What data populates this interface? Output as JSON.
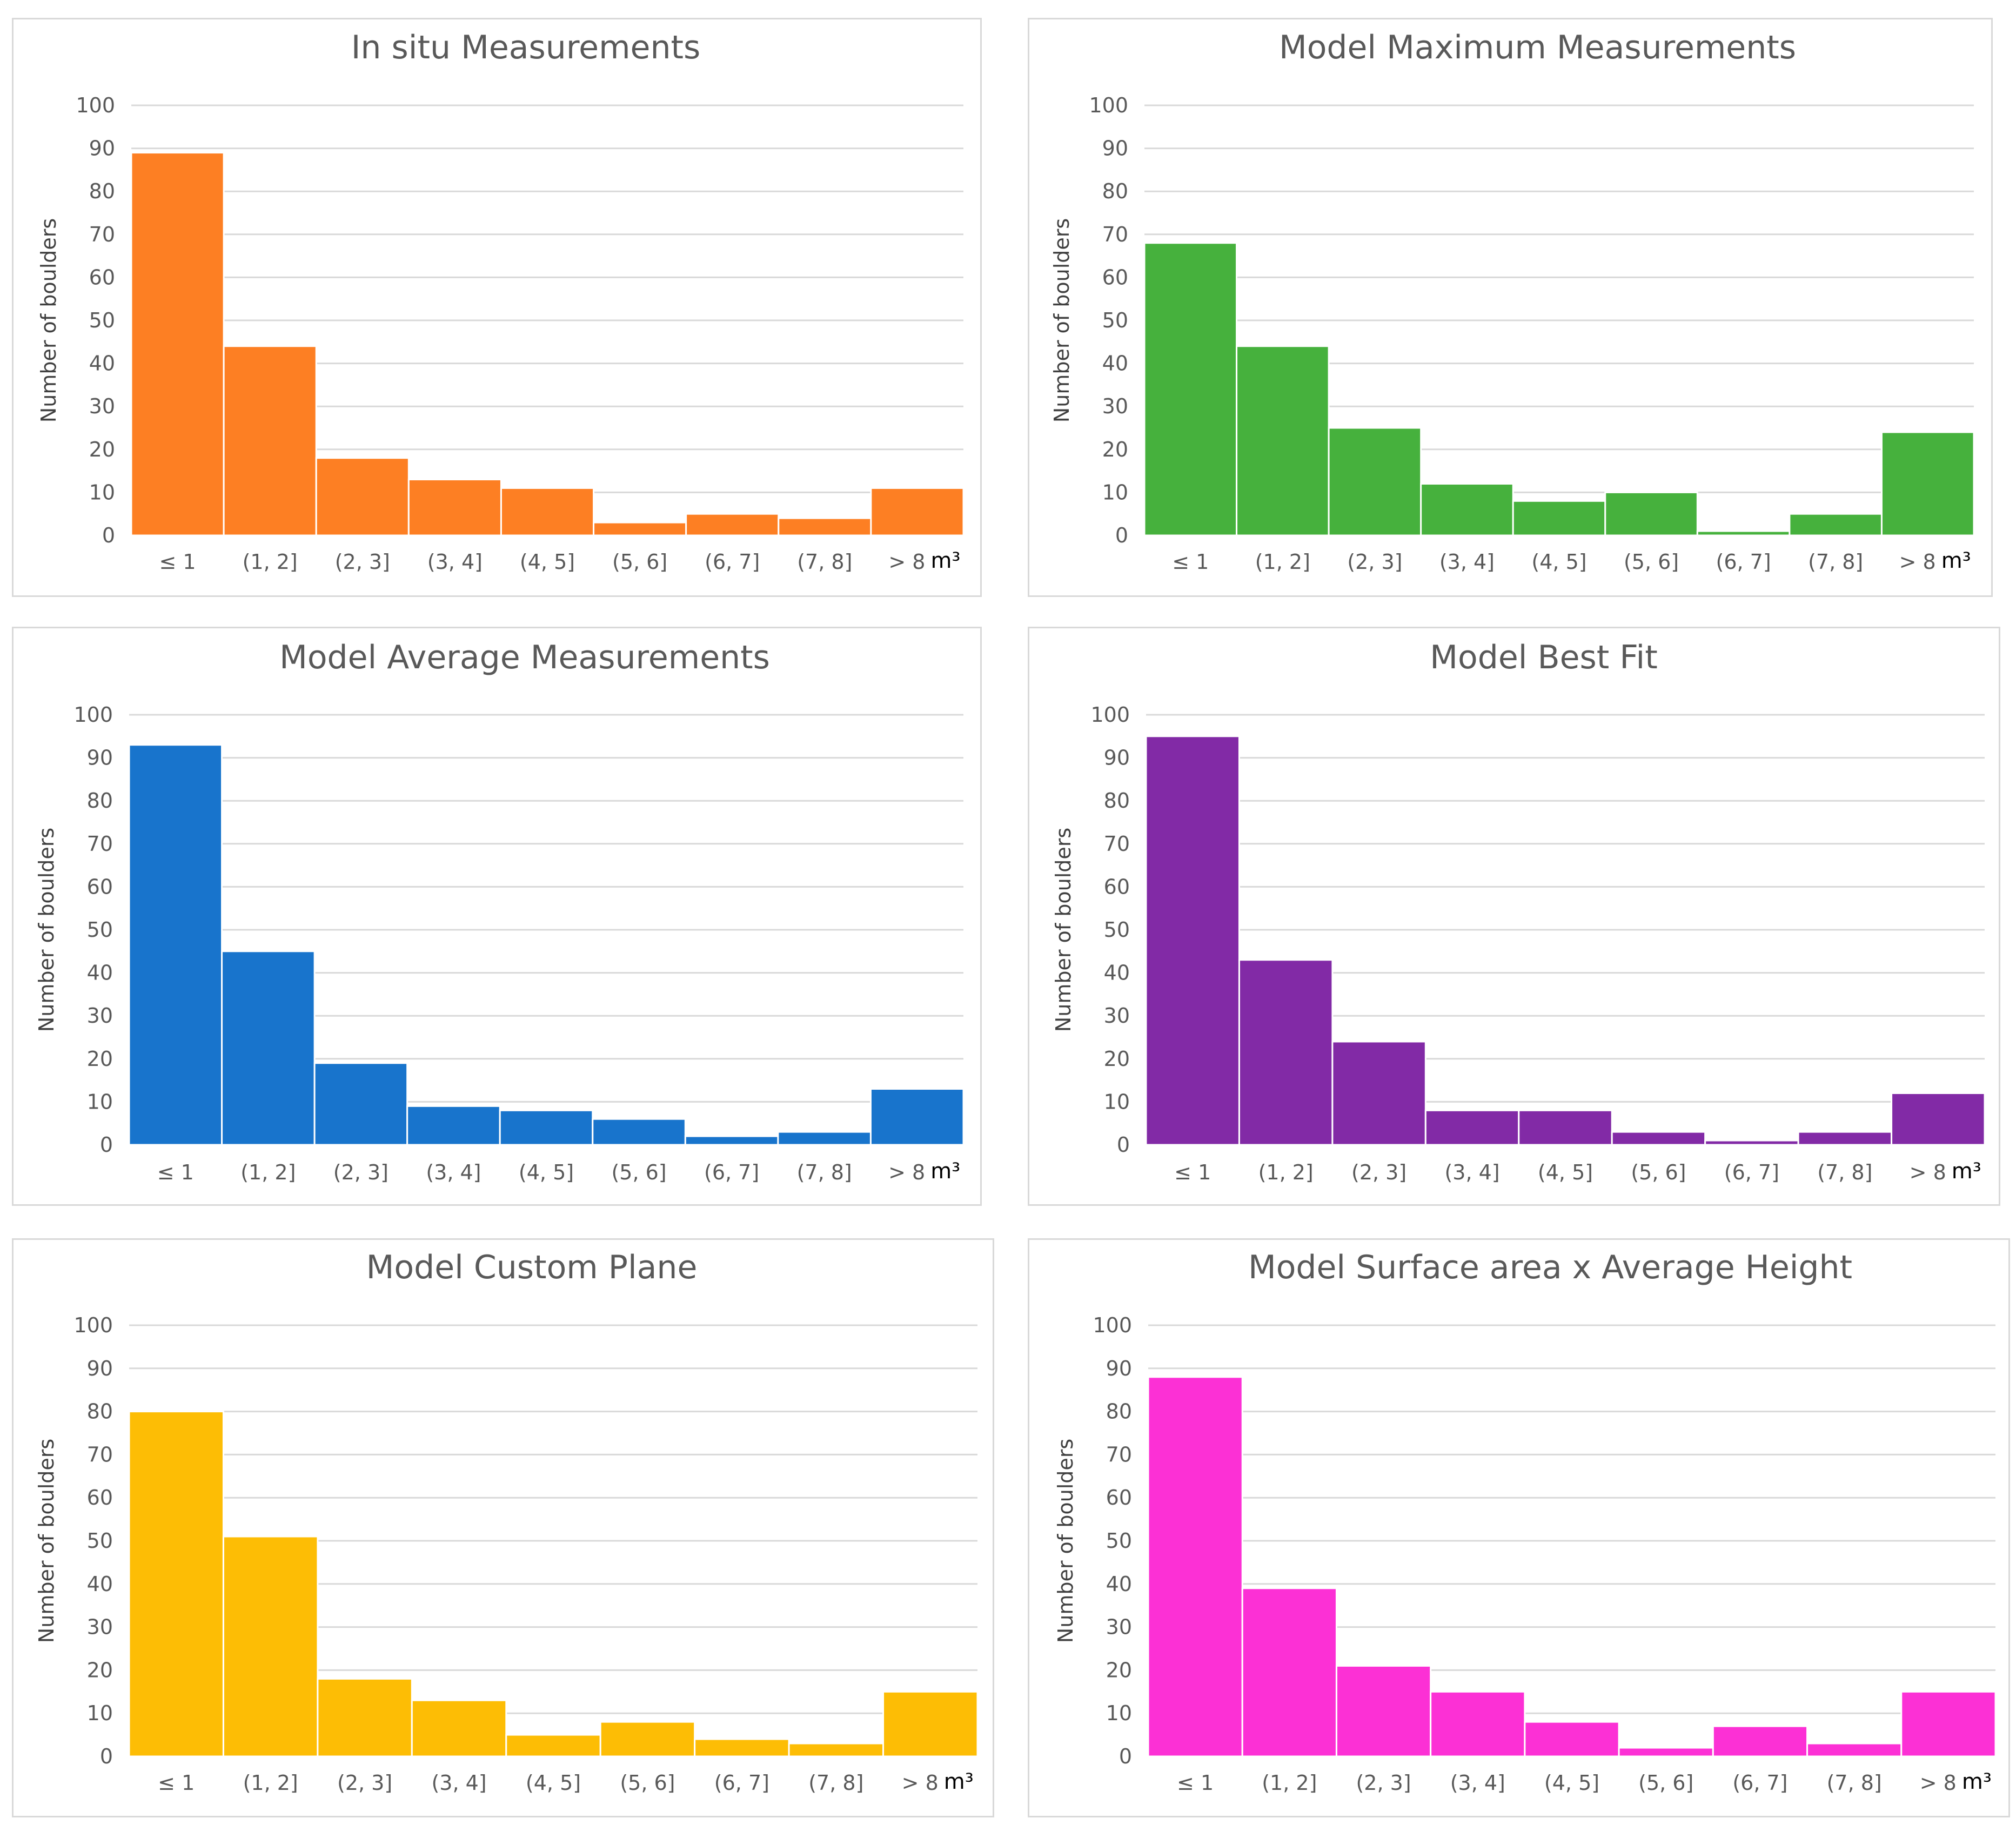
{
  "chart_data": [
    {
      "type": "bar",
      "title": "In situ Measurements",
      "ylabel": "Number of boulders",
      "xlabel": "",
      "categories": [
        "≤ 1",
        "(1, 2]",
        "(2, 3]",
        "(3, 4]",
        "(4, 5]",
        "(5, 6]",
        "(6, 7]",
        "(7, 8]",
        "> 8"
      ],
      "unit": "m³",
      "values": [
        89,
        44,
        18,
        13,
        11,
        3,
        5,
        4,
        11
      ],
      "yticks": [
        "0",
        "10",
        "20",
        "30",
        "40",
        "50",
        "60",
        "70",
        "80",
        "90",
        "100"
      ],
      "ylim": [
        0,
        100
      ],
      "color": "#fd7f23",
      "grid": true
    },
    {
      "type": "bar",
      "title": "Model Maximum Measurements",
      "ylabel": "Number of boulders",
      "xlabel": "",
      "categories": [
        "≤ 1",
        "(1, 2]",
        "(2, 3]",
        "(3, 4]",
        "(4, 5]",
        "(5, 6]",
        "(6, 7]",
        "(7, 8]",
        "> 8"
      ],
      "unit": "m³",
      "values": [
        68,
        44,
        25,
        12,
        8,
        10,
        1,
        5,
        24
      ],
      "yticks": [
        "0",
        "10",
        "20",
        "30",
        "40",
        "50",
        "60",
        "70",
        "80",
        "90",
        "100"
      ],
      "ylim": [
        0,
        100
      ],
      "color": "#46b13d",
      "grid": true
    },
    {
      "type": "bar",
      "title": "Model Average Measurements",
      "ylabel": "Number of boulders",
      "xlabel": "",
      "categories": [
        "≤ 1",
        "(1, 2]",
        "(2, 3]",
        "(3, 4]",
        "(4, 5]",
        "(5, 6]",
        "(6, 7]",
        "(7, 8]",
        "> 8"
      ],
      "unit": "m³",
      "values": [
        93,
        45,
        19,
        9,
        8,
        6,
        2,
        3,
        13
      ],
      "yticks": [
        "0",
        "10",
        "20",
        "30",
        "40",
        "50",
        "60",
        "70",
        "80",
        "90",
        "100"
      ],
      "ylim": [
        0,
        100
      ],
      "color": "#1874cc",
      "grid": true
    },
    {
      "type": "bar",
      "title": "Model Best Fit",
      "ylabel": "Number of boulders",
      "xlabel": "",
      "categories": [
        "≤ 1",
        "(1, 2]",
        "(2, 3]",
        "(3, 4]",
        "(4, 5]",
        "(5, 6]",
        "(6, 7]",
        "(7, 8]",
        "> 8"
      ],
      "unit": "m³",
      "values": [
        95,
        43,
        24,
        8,
        8,
        3,
        1,
        3,
        12
      ],
      "yticks": [
        "0",
        "10",
        "20",
        "30",
        "40",
        "50",
        "60",
        "70",
        "80",
        "90",
        "100"
      ],
      "ylim": [
        0,
        100
      ],
      "color": "#822aa6",
      "grid": true
    },
    {
      "type": "bar",
      "title": "Model Custom Plane",
      "ylabel": "Number of boulders",
      "xlabel": "",
      "categories": [
        "≤ 1",
        "(1, 2]",
        "(2, 3]",
        "(3, 4]",
        "(4, 5]",
        "(5, 6]",
        "(6, 7]",
        "(7, 8]",
        "> 8"
      ],
      "unit": "m³",
      "values": [
        80,
        51,
        18,
        13,
        5,
        8,
        4,
        3,
        15
      ],
      "yticks": [
        "0",
        "10",
        "20",
        "30",
        "40",
        "50",
        "60",
        "70",
        "80",
        "90",
        "100"
      ],
      "ylim": [
        0,
        100
      ],
      "color": "#fdbd05",
      "grid": true
    },
    {
      "type": "bar",
      "title": "Model Surface area x Average Height",
      "ylabel": "Number of boulders",
      "xlabel": "",
      "categories": [
        "≤ 1",
        "(1, 2]",
        "(2, 3]",
        "(3, 4]",
        "(4, 5]",
        "(5, 6]",
        "(6, 7]",
        "(7, 8]",
        "> 8"
      ],
      "unit": "m³",
      "values": [
        88,
        39,
        21,
        15,
        8,
        2,
        7,
        3,
        15
      ],
      "yticks": [
        "0",
        "10",
        "20",
        "30",
        "40",
        "50",
        "60",
        "70",
        "80",
        "90",
        "100"
      ],
      "ylim": [
        0,
        100
      ],
      "color": "#fc30d5",
      "grid": true
    }
  ]
}
